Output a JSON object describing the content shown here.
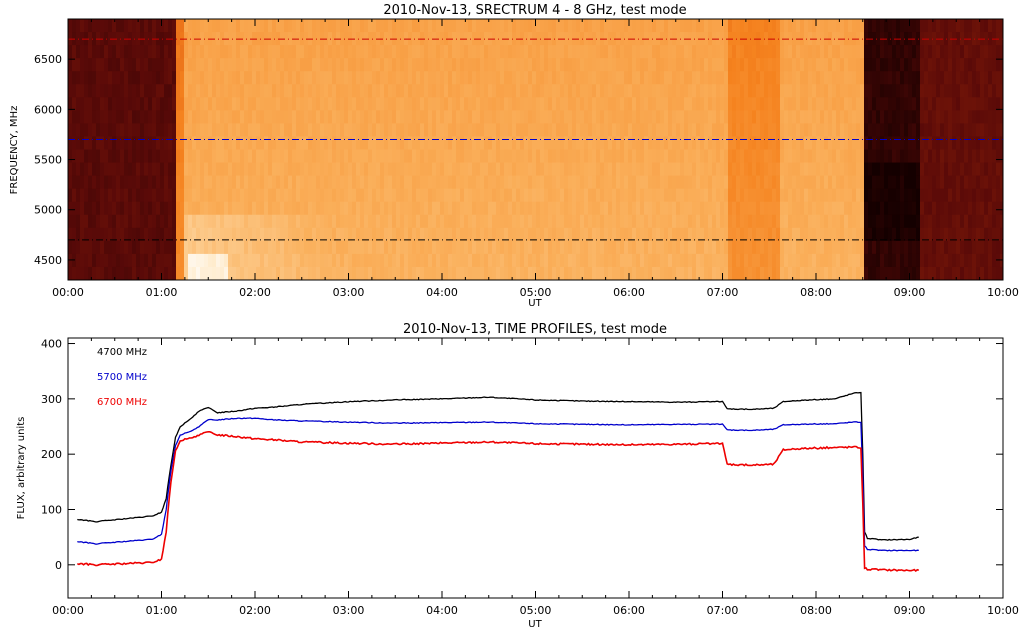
{
  "chart_data": [
    {
      "type": "heatmap",
      "title": "2010-Nov-13,  SRECTRUM 4 - 8 GHz,  test mode",
      "xlabel": "UT",
      "ylabel": "FREQUENCY, MHz",
      "xlim": [
        0,
        10
      ],
      "ylim": [
        4300,
        6900
      ],
      "x_ticks": [
        "00:00",
        "01:00",
        "02:00",
        "03:00",
        "04:00",
        "05:00",
        "06:00",
        "07:00",
        "08:00",
        "09:00",
        "10:00"
      ],
      "y_ticks": [
        4500,
        5000,
        5500,
        6000,
        6500
      ],
      "grid": false,
      "colormap": "hot (dark red to orange to white)",
      "intensity_segments": [
        {
          "t0": 0.0,
          "t1": 1.15,
          "level": 0.12
        },
        {
          "t0": 1.15,
          "t1": 1.25,
          "level": 0.55
        },
        {
          "t0": 1.25,
          "t1": 7.05,
          "level": 0.7
        },
        {
          "t0": 7.05,
          "t1": 7.6,
          "level": 0.58
        },
        {
          "t0": 7.6,
          "t1": 8.5,
          "level": 0.7
        },
        {
          "t0": 8.5,
          "t1": 9.1,
          "level": 0.05
        },
        {
          "t0": 9.1,
          "t1": 10.0,
          "level": 0.14
        }
      ],
      "reference_lines": [
        {
          "freq": 6700,
          "color": "#cc0000"
        },
        {
          "freq": 5700,
          "color": "#0000cc"
        },
        {
          "freq": 4700,
          "color": "#000000"
        }
      ]
    },
    {
      "type": "line",
      "title": "2010-Nov-13,  TIME PROFILES,  test mode",
      "xlabel": "UT",
      "ylabel": "FLUX, arbitrary units",
      "xlim": [
        0,
        10
      ],
      "ylim": [
        -60,
        410
      ],
      "x_ticks": [
        "00:00",
        "01:00",
        "02:00",
        "03:00",
        "04:00",
        "05:00",
        "06:00",
        "07:00",
        "08:00",
        "09:00",
        "10:00"
      ],
      "y_ticks": [
        0,
        100,
        200,
        300,
        400
      ],
      "grid": false,
      "legend_placement": "top-left",
      "series": [
        {
          "name": "4700 MHz",
          "color": "#000000",
          "x": [
            0.1,
            0.3,
            0.6,
            0.9,
            1.0,
            1.05,
            1.1,
            1.15,
            1.2,
            1.3,
            1.4,
            1.5,
            1.6,
            1.8,
            2.0,
            2.2,
            2.5,
            3.0,
            3.5,
            4.0,
            4.5,
            5.0,
            5.5,
            6.0,
            6.5,
            7.0,
            7.05,
            7.3,
            7.55,
            7.65,
            7.8,
            8.2,
            8.4,
            8.48,
            8.5,
            8.52,
            8.55,
            8.7,
            9.0,
            9.1
          ],
          "y": [
            82,
            78,
            83,
            88,
            95,
            120,
            180,
            230,
            250,
            262,
            278,
            284,
            275,
            278,
            283,
            285,
            290,
            295,
            298,
            300,
            303,
            298,
            296,
            295,
            294,
            295,
            282,
            281,
            283,
            295,
            297,
            300,
            310,
            312,
            200,
            60,
            48,
            45,
            46,
            50
          ]
        },
        {
          "name": "5700 MHz",
          "color": "#0000cc",
          "x": [
            0.1,
            0.3,
            0.6,
            0.9,
            1.0,
            1.05,
            1.1,
            1.15,
            1.2,
            1.3,
            1.4,
            1.5,
            1.6,
            1.8,
            2.0,
            2.2,
            2.5,
            3.0,
            3.5,
            4.0,
            4.5,
            5.0,
            5.5,
            6.0,
            6.5,
            7.0,
            7.05,
            7.3,
            7.55,
            7.65,
            7.8,
            8.2,
            8.4,
            8.48,
            8.5,
            8.52,
            8.55,
            8.7,
            9.0,
            9.1
          ],
          "y": [
            42,
            38,
            42,
            46,
            55,
            100,
            170,
            215,
            235,
            240,
            250,
            262,
            262,
            265,
            265,
            262,
            260,
            258,
            256,
            257,
            258,
            255,
            254,
            253,
            254,
            254,
            244,
            243,
            245,
            253,
            254,
            255,
            258,
            258,
            160,
            35,
            28,
            26,
            26,
            26
          ]
        },
        {
          "name": "6700 MHz",
          "color": "#ee0000",
          "x": [
            0.1,
            0.3,
            0.6,
            0.9,
            1.0,
            1.05,
            1.1,
            1.15,
            1.2,
            1.3,
            1.4,
            1.5,
            1.6,
            1.8,
            2.0,
            2.2,
            2.5,
            3.0,
            3.5,
            4.0,
            4.5,
            5.0,
            5.5,
            6.0,
            6.5,
            7.0,
            7.05,
            7.3,
            7.55,
            7.65,
            7.8,
            8.2,
            8.4,
            8.48,
            8.5,
            8.52,
            8.55,
            8.7,
            9.0,
            9.1
          ],
          "y": [
            2,
            0,
            2,
            4,
            10,
            60,
            150,
            205,
            225,
            228,
            235,
            240,
            235,
            232,
            228,
            226,
            222,
            220,
            218,
            220,
            222,
            219,
            218,
            217,
            218,
            219,
            182,
            180,
            182,
            208,
            210,
            212,
            213,
            212,
            110,
            -5,
            -8,
            -9,
            -10,
            -10
          ]
        }
      ]
    }
  ]
}
